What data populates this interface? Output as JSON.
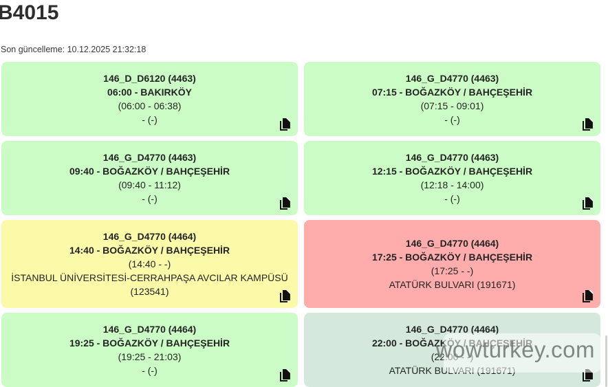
{
  "header": {
    "title": "B4015",
    "last_update": "Son güncelleme: 10.12.2025 21:32:18"
  },
  "colors": {
    "green": "#cbfcc5",
    "yellow": "#fafaa9",
    "red": "#ffacac",
    "muted": "#d5e8dc"
  },
  "watermark": {
    "text": "wowturkey.com"
  },
  "trips": [
    {
      "color": "green",
      "lines": [
        {
          "text": "146_D_D6120 (4463)",
          "bold": true
        },
        {
          "text": "06:00 - BAKIRKÖY",
          "bold": true
        },
        {
          "text": "(06:00 - 06:38)",
          "bold": false
        },
        {
          "text": "- (-)",
          "bold": false
        }
      ]
    },
    {
      "color": "green",
      "lines": [
        {
          "text": "146_G_D4770 (4463)",
          "bold": true
        },
        {
          "text": "07:15 - BOĞAZKÖY / BAHÇEŞEHİR",
          "bold": true
        },
        {
          "text": "(07:15 - 09:01)",
          "bold": false
        },
        {
          "text": "- (-)",
          "bold": false
        }
      ]
    },
    {
      "color": "green",
      "lines": [
        {
          "text": "146_G_D4770 (4463)",
          "bold": true
        },
        {
          "text": "09:40 - BOĞAZKÖY / BAHÇEŞEHİR",
          "bold": true
        },
        {
          "text": "(09:40 - 11:12)",
          "bold": false
        },
        {
          "text": "- (-)",
          "bold": false
        }
      ]
    },
    {
      "color": "green",
      "lines": [
        {
          "text": "146_G_D4770 (4463)",
          "bold": true
        },
        {
          "text": "12:15 - BOĞAZKÖY / BAHÇEŞEHİR",
          "bold": true
        },
        {
          "text": "(12:18 - 14:00)",
          "bold": false
        },
        {
          "text": "- (-)",
          "bold": false
        }
      ]
    },
    {
      "color": "yellow",
      "lines": [
        {
          "text": "146_G_D4770 (4464)",
          "bold": true
        },
        {
          "text": "14:40 - BOĞAZKÖY / BAHÇEŞEHİR",
          "bold": true
        },
        {
          "text": "(14:40 - -)",
          "bold": false
        },
        {
          "text": "İSTANBUL ÜNİVERSİTESİ-CERRAHPAŞA AVCILAR KAMPÜSÜ",
          "bold": false
        },
        {
          "text": "(123541)",
          "bold": false
        }
      ]
    },
    {
      "color": "red",
      "lines": [
        {
          "text": "146_G_D4770 (4464)",
          "bold": true
        },
        {
          "text": "17:25 - BOĞAZKÖY / BAHÇEŞEHİR",
          "bold": true
        },
        {
          "text": "(17:25 - -)",
          "bold": false
        },
        {
          "text": "ATATÜRK BULVARI (191671)",
          "bold": false
        }
      ]
    },
    {
      "color": "green",
      "lines": [
        {
          "text": "146_G_D4770 (4464)",
          "bold": true
        },
        {
          "text": "19:25 - BOĞAZKÖY / BAHÇEŞEHİR",
          "bold": true
        },
        {
          "text": "(19:25 - 21:03)",
          "bold": false
        },
        {
          "text": "- (-)",
          "bold": false
        }
      ]
    },
    {
      "color": "muted",
      "watermark": true,
      "lines": [
        {
          "text": "146_G_D4770 (4464)",
          "bold": true
        },
        {
          "text": "22:00 - BOĞAZKÖY / BAHÇEŞEHİR",
          "bold": true
        },
        {
          "text": "(22:00 - -)",
          "bold": false
        },
        {
          "text": "ATATÜRK BULVARI (191671)",
          "bold": false
        }
      ]
    }
  ]
}
